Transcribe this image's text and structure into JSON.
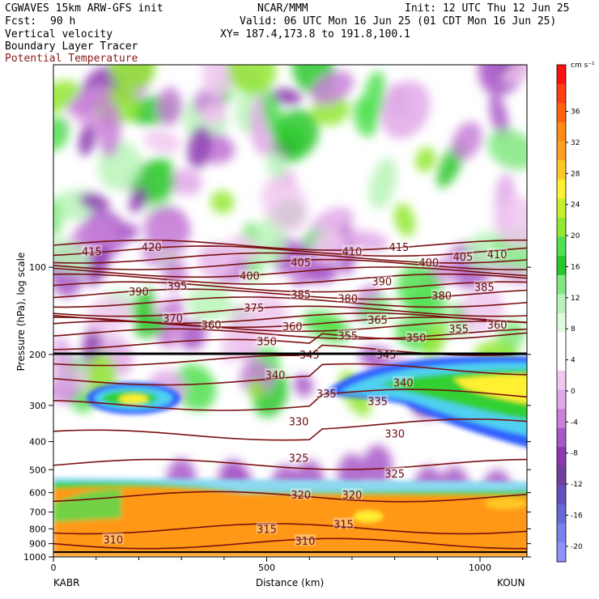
{
  "header": {
    "model": "CGWAVES 15km ARW-GFS init",
    "org": "NCAR/MMM",
    "init": "Init: 12 UTC Thu 12 Jun 25",
    "fcst_label": "Fcst:",
    "fcst_value": "90 h",
    "valid": "Valid: 06 UTC Mon 16 Jun 25 (01 CDT Mon 16 Jun 25)",
    "field1": "Vertical velocity",
    "field2": "Boundary Layer Tracer",
    "field3": "Potential Temperature",
    "xy": "XY= 187.4,173.8 to 191.8,100.1",
    "field3_color": "#8b1a1a"
  },
  "chart_data": {
    "type": "heatmap",
    "xlabel": "Distance (km)",
    "ylabel": "Pressure (hPa), log scale",
    "xlim": [
      0,
      1110
    ],
    "ylim": [
      1000,
      20
    ],
    "y_scale": "log",
    "x_ticks": [
      0,
      500,
      1000
    ],
    "x_minor_ticks": [
      100,
      200,
      300,
      400,
      600,
      700,
      800,
      900,
      1100
    ],
    "y_ticks": [
      100,
      200,
      300,
      400,
      500,
      600,
      700,
      800,
      900,
      1000
    ],
    "x_endpoints": [
      "KABR",
      "KOUN"
    ],
    "colorbar": {
      "unit": "cm s⁻¹",
      "labels": [
        36,
        32,
        28,
        24,
        20,
        16,
        12,
        8,
        4,
        0,
        -4,
        -8,
        -12,
        -16,
        -20
      ],
      "colors": [
        "#ff1010",
        "#ff3d10",
        "#ff6010",
        "#ff8a15",
        "#ffa020",
        "#ffc825",
        "#fff030",
        "#c8f028",
        "#90e830",
        "#50e050",
        "#28c828",
        "#80e880",
        "#b8f4b8",
        "#e0fae0",
        "#ffffff",
        "#ffffff",
        "#f0c8f0",
        "#e0a8e8",
        "#c880d8",
        "#a858c8",
        "#8c38b0",
        "#7040a0",
        "#6050c0",
        "#6868d8",
        "#7c80f0",
        "#9090ff"
      ]
    },
    "theta_contours": [
      310,
      315,
      320,
      325,
      330,
      335,
      340,
      345,
      350,
      355,
      360,
      365,
      370,
      375,
      380,
      385,
      390,
      395,
      400,
      405,
      410,
      415,
      420
    ],
    "theta_labels": [
      {
        "v": "415",
        "x": 90,
        "p": 88
      },
      {
        "v": "420",
        "x": 230,
        "p": 85
      },
      {
        "v": "410",
        "x": 700,
        "p": 88
      },
      {
        "v": "415",
        "x": 810,
        "p": 85
      },
      {
        "v": "405",
        "x": 580,
        "p": 96
      },
      {
        "v": "400",
        "x": 880,
        "p": 96
      },
      {
        "v": "405",
        "x": 960,
        "p": 92
      },
      {
        "v": "410",
        "x": 1040,
        "p": 90
      },
      {
        "v": "400",
        "x": 460,
        "p": 107
      },
      {
        "v": "390",
        "x": 770,
        "p": 112
      },
      {
        "v": "385",
        "x": 1010,
        "p": 117
      },
      {
        "v": "390",
        "x": 200,
        "p": 121
      },
      {
        "v": "395",
        "x": 290,
        "p": 116
      },
      {
        "v": "385",
        "x": 580,
        "p": 124
      },
      {
        "v": "380",
        "x": 690,
        "p": 128
      },
      {
        "v": "380",
        "x": 910,
        "p": 125
      },
      {
        "v": "375",
        "x": 470,
        "p": 138
      },
      {
        "v": "370",
        "x": 280,
        "p": 150
      },
      {
        "v": "360",
        "x": 370,
        "p": 158
      },
      {
        "v": "360",
        "x": 560,
        "p": 160
      },
      {
        "v": "365",
        "x": 760,
        "p": 152
      },
      {
        "v": "355",
        "x": 690,
        "p": 172
      },
      {
        "v": "350",
        "x": 850,
        "p": 175
      },
      {
        "v": "355",
        "x": 950,
        "p": 163
      },
      {
        "v": "360",
        "x": 1040,
        "p": 158
      },
      {
        "v": "350",
        "x": 500,
        "p": 180
      },
      {
        "v": "345",
        "x": 600,
        "p": 200
      },
      {
        "v": "345",
        "x": 780,
        "p": 200
      },
      {
        "v": "340",
        "x": 520,
        "p": 235
      },
      {
        "v": "340",
        "x": 820,
        "p": 250
      },
      {
        "v": "335",
        "x": 640,
        "p": 273
      },
      {
        "v": "335",
        "x": 760,
        "p": 290
      },
      {
        "v": "330",
        "x": 575,
        "p": 340
      },
      {
        "v": "330",
        "x": 800,
        "p": 375
      },
      {
        "v": "325",
        "x": 575,
        "p": 455
      },
      {
        "v": "325",
        "x": 800,
        "p": 515
      },
      {
        "v": "320",
        "x": 580,
        "p": 610
      },
      {
        "v": "320",
        "x": 700,
        "p": 610
      },
      {
        "v": "315",
        "x": 500,
        "p": 800
      },
      {
        "v": "315",
        "x": 680,
        "p": 770
      },
      {
        "v": "310",
        "x": 140,
        "p": 870
      },
      {
        "v": "310",
        "x": 590,
        "p": 880
      }
    ]
  }
}
